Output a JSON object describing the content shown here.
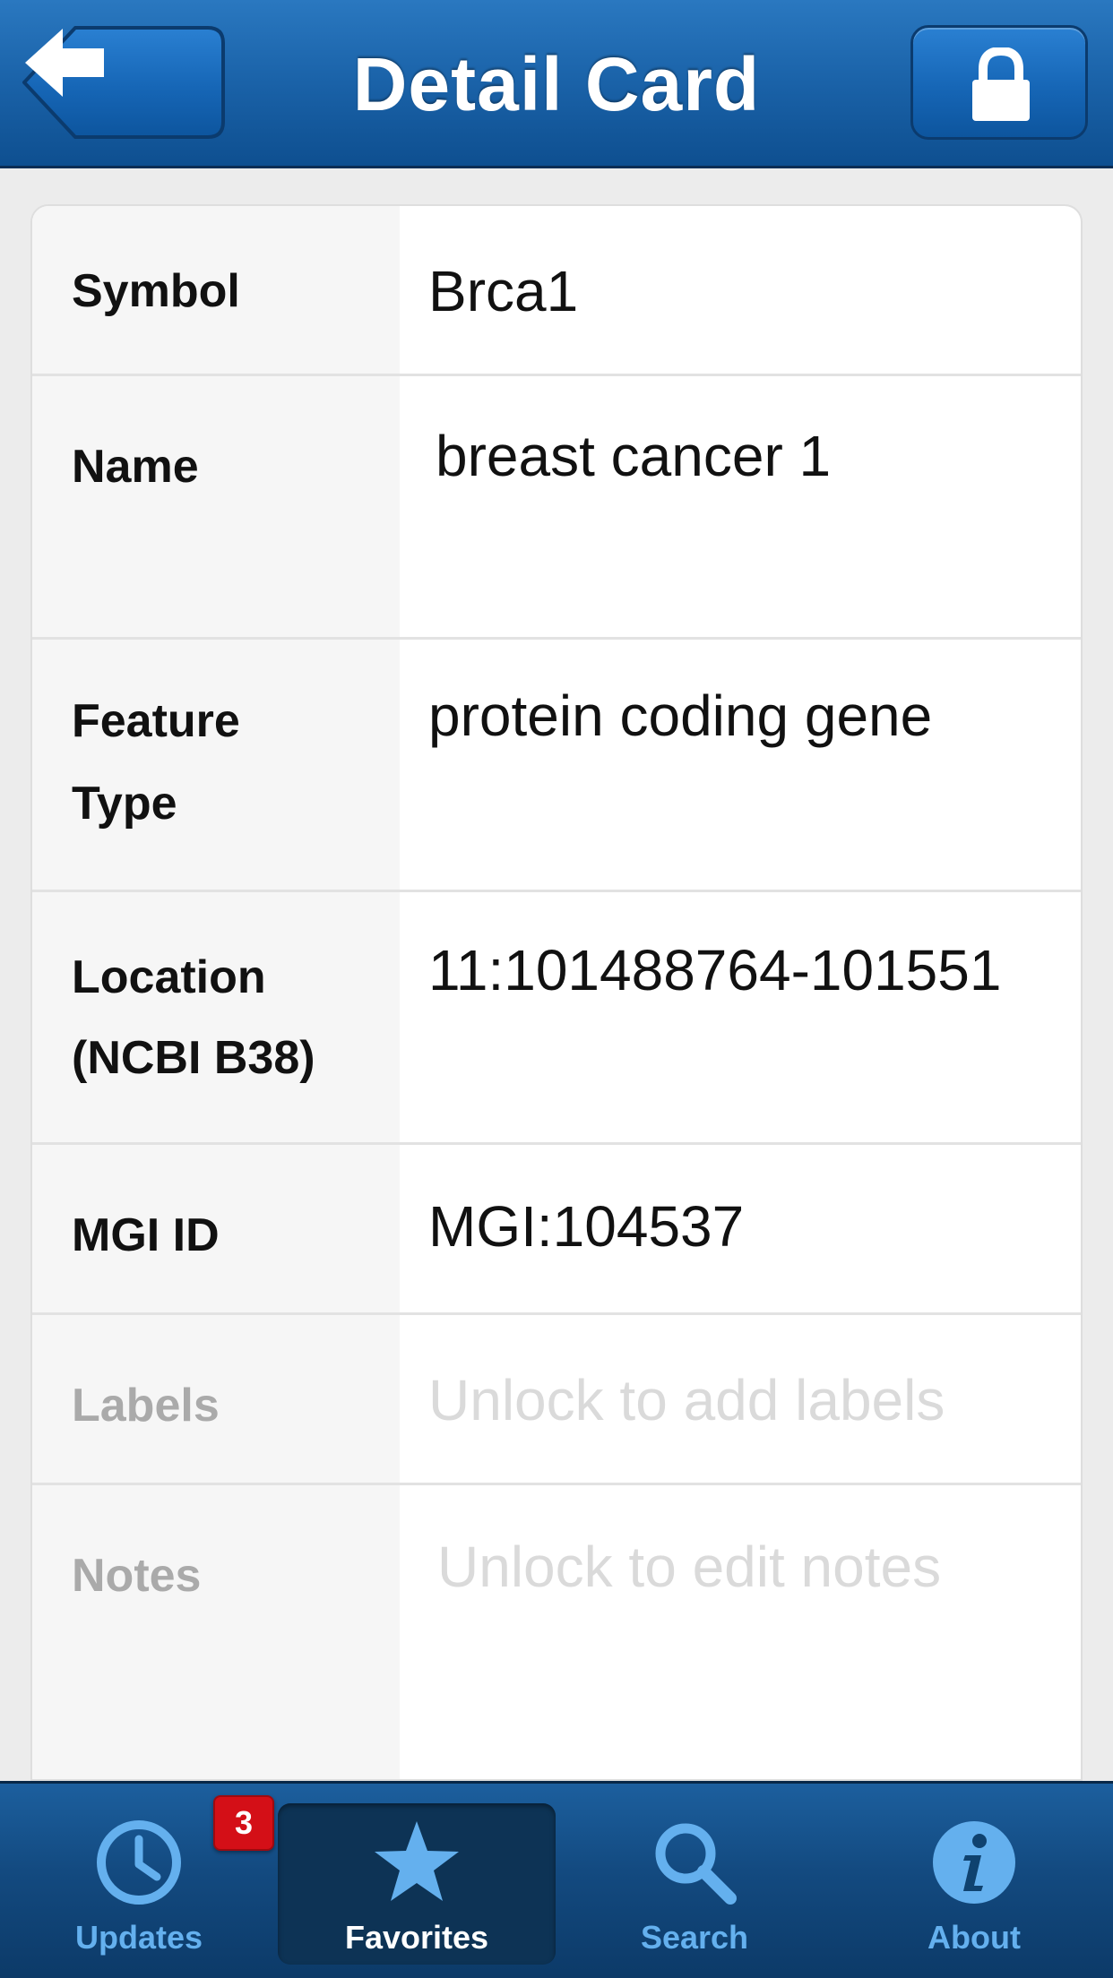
{
  "header": {
    "title": "Detail Card",
    "back_icon": "arrow-left-icon",
    "lock_icon": "lock-icon"
  },
  "card": {
    "rows": [
      {
        "label": "Symbol",
        "value": "Brca1",
        "enabled": true
      },
      {
        "label": "Name",
        "value": "breast cancer 1",
        "enabled": true
      },
      {
        "label_lines": [
          "Feature",
          "Type"
        ],
        "value": "protein coding gene",
        "enabled": true
      },
      {
        "label_lines": [
          "Location",
          "(NCBI B38)"
        ],
        "value": "11:101488764-101551",
        "enabled": true
      },
      {
        "label": "MGI ID",
        "value": "MGI:104537",
        "enabled": true
      },
      {
        "label": "Labels",
        "placeholder": "Unlock to add labels",
        "enabled": false
      },
      {
        "label": "Notes",
        "placeholder": "Unlock to edit notes",
        "enabled": false
      }
    ]
  },
  "tabbar": {
    "tabs": [
      {
        "label": "Updates",
        "icon": "clock-icon",
        "active": false,
        "badge": "3"
      },
      {
        "label": "Favorites",
        "icon": "star-icon",
        "active": true
      },
      {
        "label": "Search",
        "icon": "search-icon",
        "active": false
      },
      {
        "label": "About",
        "icon": "info-icon",
        "active": false
      }
    ]
  },
  "colors": {
    "header_blue": "#1a62a8",
    "tab_label_blue": "#64b0ee",
    "badge_red": "#d40f17"
  }
}
